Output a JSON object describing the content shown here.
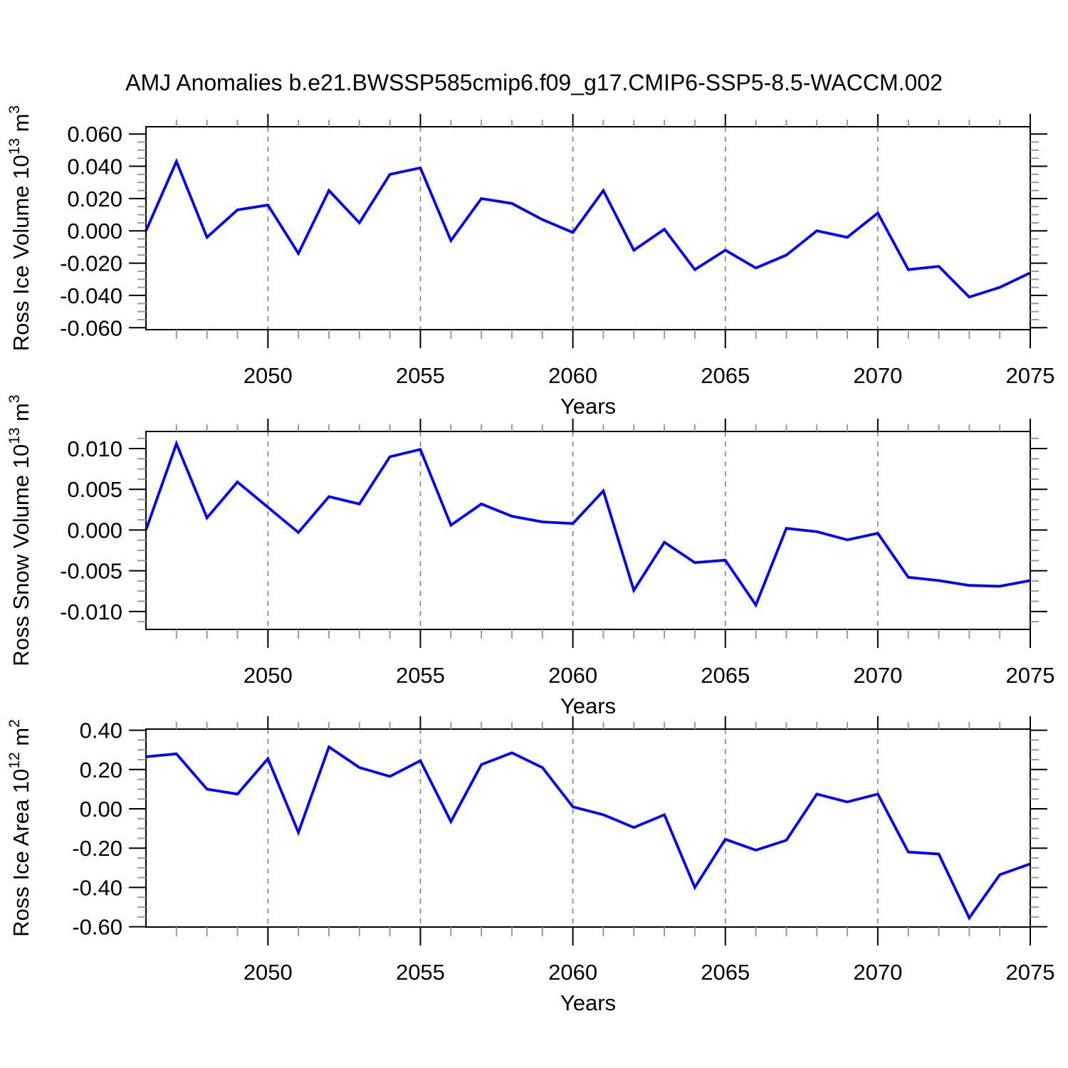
{
  "title": "AMJ Anomalies b.e21.BWSSP585cmip6.f09_g17.CMIP6-SSP5-8.5-WACCM.002",
  "colors": {
    "line": "#0000ff",
    "axis": "#000000",
    "major_tick": "#000000",
    "minor_tick": "#9a9a9a",
    "gridline": "#7f7f7f",
    "background": "#ffffff",
    "text": "#000000"
  },
  "x_axis": {
    "label": "Years",
    "years": [
      2046,
      2047,
      2048,
      2049,
      2050,
      2051,
      2052,
      2053,
      2054,
      2055,
      2056,
      2057,
      2058,
      2059,
      2060,
      2061,
      2062,
      2063,
      2064,
      2065,
      2066,
      2067,
      2068,
      2069,
      2070,
      2071,
      2072,
      2073,
      2074,
      2075
    ],
    "xlim": [
      2046,
      2075
    ],
    "major_ticks": [
      2050,
      2055,
      2060,
      2065,
      2070,
      2075
    ],
    "major_tick_labels": [
      "2050",
      "2055",
      "2060",
      "2065",
      "2070",
      "2075"
    ],
    "minor_step": 1,
    "gridlines": [
      2050,
      2055,
      2060,
      2065,
      2070
    ]
  },
  "chart_data": [
    {
      "id": "ross-ice-volume",
      "type": "line",
      "ylabel_text": "Ross Ice Volume 10^13 m^3",
      "ylabel_parts": {
        "base": "Ross Ice Volume 10",
        "exp1": "13",
        "unit": " m",
        "exp2": "3"
      },
      "ylim": [
        -0.0612,
        0.0645
      ],
      "ytick_values": [
        0.06,
        0.04,
        0.02,
        0.0,
        -0.02,
        -0.04,
        -0.06
      ],
      "ytick_labels": [
        "0.060",
        "0.040",
        "0.020",
        "0.000",
        "-0.020",
        "-0.040",
        "-0.060"
      ],
      "y_minor_step": 0.005,
      "values": [
        0.0,
        0.043,
        -0.004,
        0.013,
        0.016,
        -0.014,
        0.025,
        0.005,
        0.035,
        0.039,
        -0.006,
        0.02,
        0.017,
        0.007,
        -0.001,
        0.025,
        -0.012,
        0.001,
        -0.024,
        -0.012,
        -0.023,
        -0.015,
        0.0,
        -0.004,
        0.011,
        -0.024,
        -0.022,
        -0.041,
        -0.035,
        -0.026
      ]
    },
    {
      "id": "ross-snow-volume",
      "type": "line",
      "ylabel_text": "Ross Snow Volume 10^13 m^3",
      "ylabel_parts": {
        "base": "Ross Snow Volume 10",
        "exp1": "13",
        "unit": " m",
        "exp2": "3"
      },
      "ylim": [
        -0.0122,
        0.0121
      ],
      "ytick_values": [
        0.01,
        0.005,
        0.0,
        -0.005,
        -0.01
      ],
      "ytick_labels": [
        "0.010",
        "0.005",
        "0.000",
        "-0.005",
        "-0.010"
      ],
      "y_minor_step": 0.00125,
      "values": [
        0.0,
        0.0106,
        0.0015,
        0.0059,
        0.0028,
        -0.0003,
        0.0041,
        0.0032,
        0.009,
        0.0099,
        0.0006,
        0.0032,
        0.0017,
        0.001,
        0.0008,
        0.0048,
        -0.0074,
        -0.0015,
        -0.004,
        -0.0037,
        -0.0092,
        0.0002,
        -0.0002,
        -0.0012,
        -0.0004,
        -0.0058,
        -0.0062,
        -0.0068,
        -0.0069,
        -0.0062
      ]
    },
    {
      "id": "ross-ice-area",
      "type": "line",
      "ylabel_text": "Ross Ice Area 10^12 m^2",
      "ylabel_parts": {
        "base": "Ross Ice Area 10",
        "exp1": "12",
        "unit": " m",
        "exp2": "2"
      },
      "ylim": [
        -0.6014,
        0.4058
      ],
      "ytick_values": [
        0.4,
        0.2,
        0.0,
        -0.2,
        -0.4,
        -0.6
      ],
      "ytick_labels": [
        "0.40",
        "0.20",
        "0.00",
        "-0.20",
        "-0.40",
        "-0.60"
      ],
      "y_minor_step": 0.05,
      "values": [
        0.265,
        0.28,
        0.1,
        0.075,
        0.255,
        -0.12,
        0.315,
        0.21,
        0.165,
        0.245,
        -0.065,
        0.225,
        0.285,
        0.21,
        0.01,
        -0.03,
        -0.095,
        -0.03,
        -0.4,
        -0.155,
        -0.21,
        -0.16,
        0.075,
        0.035,
        0.075,
        -0.22,
        -0.23,
        -0.555,
        -0.335,
        -0.28
      ]
    }
  ]
}
